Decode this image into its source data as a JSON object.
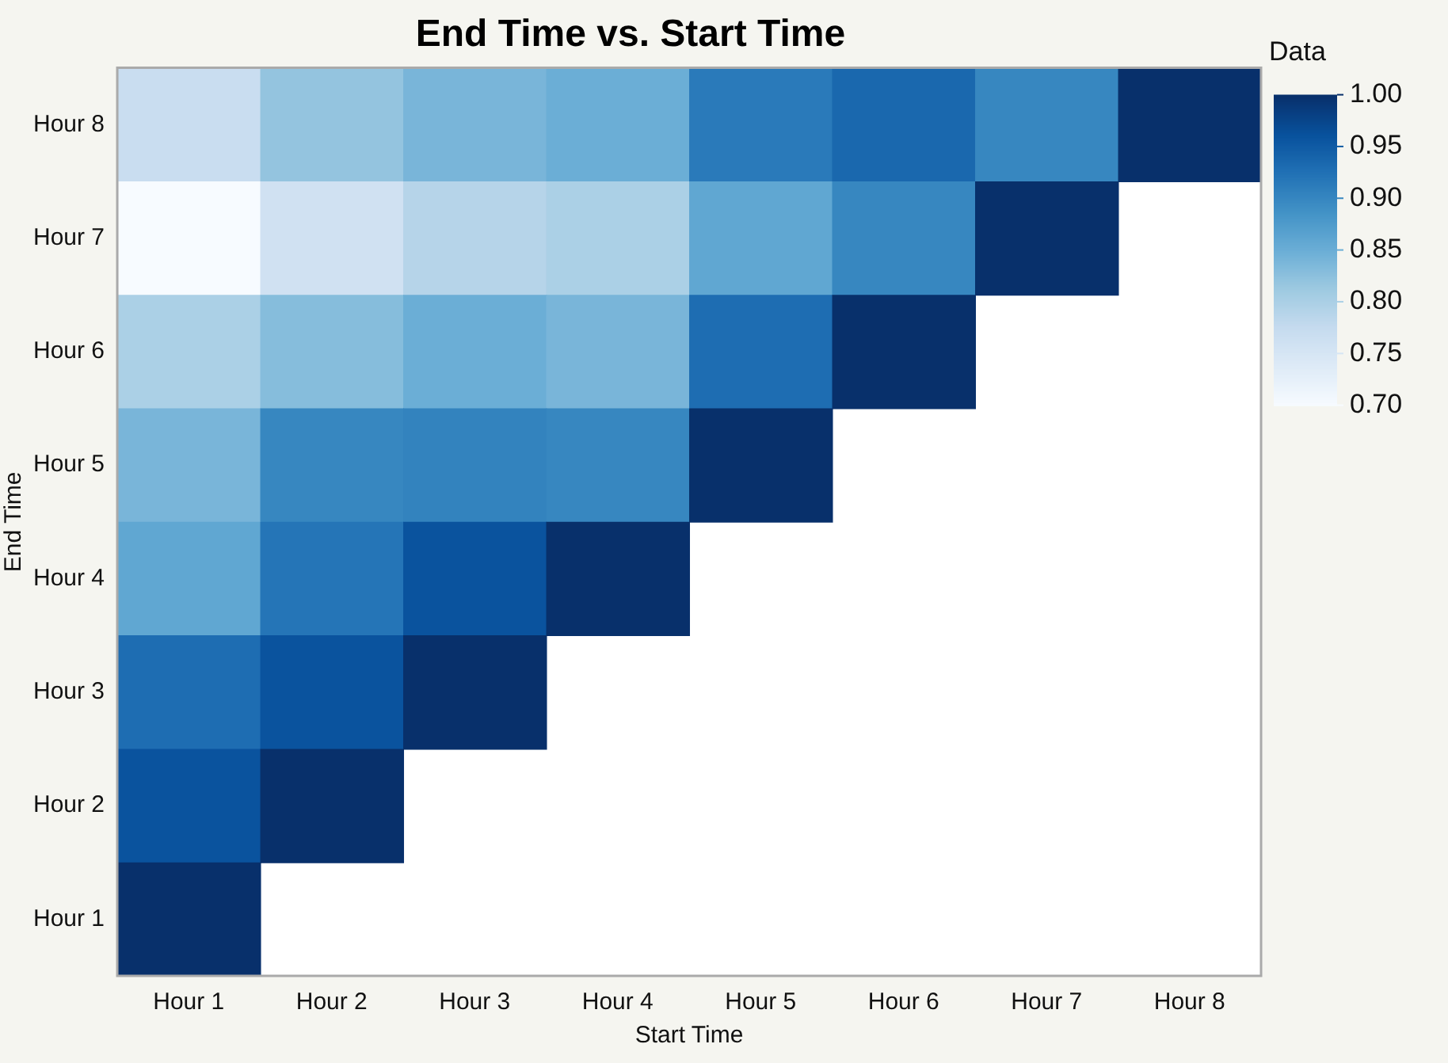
{
  "chart_data": {
    "type": "heatmap",
    "title": "End Time vs. Start Time",
    "xlabel": "Start Time",
    "ylabel": "End Time",
    "clabel": "Data",
    "categories": [
      "Hour 1",
      "Hour 2",
      "Hour 3",
      "Hour 4",
      "Hour 5",
      "Hour 6",
      "Hour 7",
      "Hour 8"
    ],
    "y_categories": [
      "Hour 8",
      "Hour 7",
      "Hour 6",
      "Hour 5",
      "Hour 4",
      "Hour 3",
      "Hour 2",
      "Hour 1"
    ],
    "cells": [
      [
        0.77,
        0.82,
        0.84,
        0.85,
        0.915,
        0.935,
        0.9,
        1.0
      ],
      [
        0.7,
        0.76,
        0.79,
        0.8,
        0.86,
        0.9,
        1.0,
        null
      ],
      [
        0.8,
        0.83,
        0.85,
        0.84,
        0.93,
        1.0,
        null,
        null
      ],
      [
        0.84,
        0.9,
        0.905,
        0.9,
        1.0,
        null,
        null,
        null
      ],
      [
        0.86,
        0.92,
        0.96,
        1.0,
        null,
        null,
        null,
        null
      ],
      [
        0.93,
        0.96,
        1.0,
        null,
        null,
        null,
        null,
        null
      ],
      [
        0.96,
        1.0,
        null,
        null,
        null,
        null,
        null,
        null
      ],
      [
        1.0,
        null,
        null,
        null,
        null,
        null,
        null,
        null
      ]
    ],
    "clim": [
      0.7,
      1.0
    ],
    "cticks": [
      {
        "value": 0.7,
        "label": "0.70"
      },
      {
        "value": 0.75,
        "label": "0.75"
      },
      {
        "value": 0.8,
        "label": "0.80"
      },
      {
        "value": 0.85,
        "label": "0.85"
      },
      {
        "value": 0.9,
        "label": "0.90"
      },
      {
        "value": 0.95,
        "label": "0.95"
      },
      {
        "value": 1.0,
        "label": "1.00"
      }
    ]
  }
}
